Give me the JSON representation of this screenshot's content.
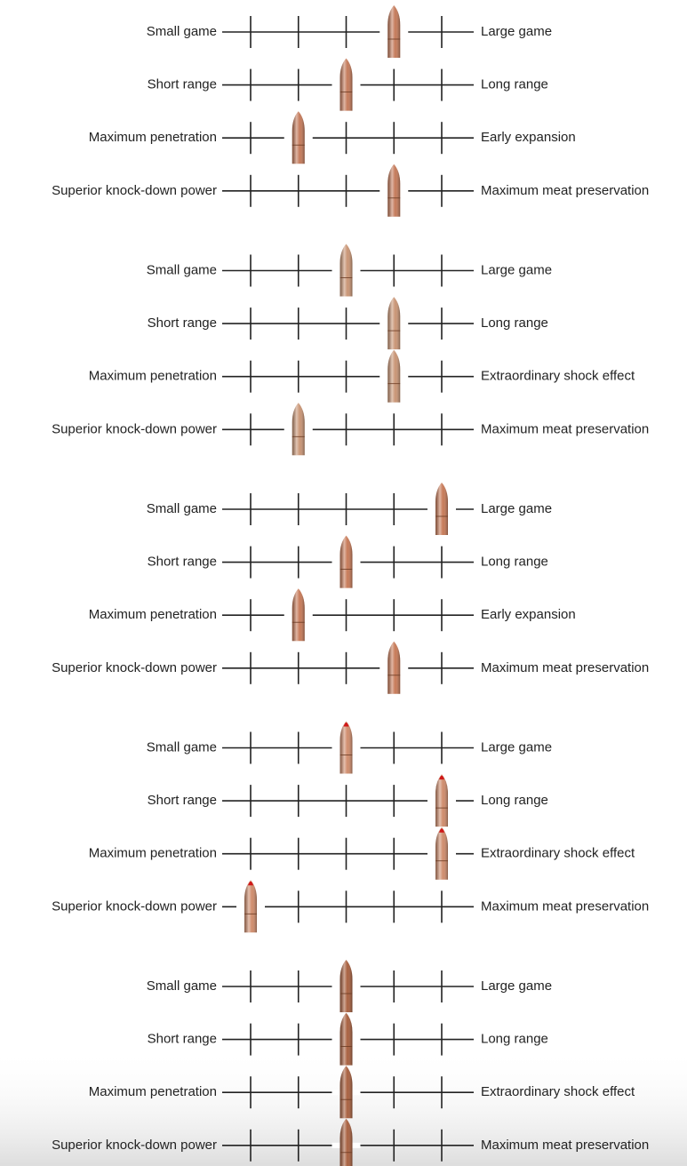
{
  "ticks": [
    1,
    2,
    3,
    4,
    5
  ],
  "groups": [
    {
      "color": "#c47a5a",
      "rows": [
        {
          "left": "Small game",
          "right": "Large game",
          "position": 4
        },
        {
          "left": "Short range",
          "right": "Long range",
          "position": 3
        },
        {
          "left": "Maximum penetration",
          "right": "Early expansion",
          "position": 2
        },
        {
          "left": "Superior knock-down power",
          "right": "Maximum meat preservation",
          "position": 4
        }
      ]
    },
    {
      "color": "#c99575",
      "rows": [
        {
          "left": "Small game",
          "right": "Large game",
          "position": 3
        },
        {
          "left": "Short range",
          "right": "Long range",
          "position": 4
        },
        {
          "left": "Maximum penetration",
          "right": "Extraordinary shock effect",
          "position": 4
        },
        {
          "left": "Superior knock-down power",
          "right": "Maximum meat preservation",
          "position": 2
        }
      ]
    },
    {
      "color": "#c77a58",
      "rows": [
        {
          "left": "Small game",
          "right": "Large game",
          "position": 5
        },
        {
          "left": "Short range",
          "right": "Long range",
          "position": 3
        },
        {
          "left": "Maximum penetration",
          "right": "Early expansion",
          "position": 2
        },
        {
          "left": "Superior knock-down power",
          "right": "Maximum meat preservation",
          "position": 4
        }
      ]
    },
    {
      "color": "#cf8c6c",
      "tip_color": "#d01818",
      "rows": [
        {
          "left": "Small game",
          "right": "Large game",
          "position": 3
        },
        {
          "left": "Short range",
          "right": "Long range",
          "position": 5
        },
        {
          "left": "Maximum penetration",
          "right": "Extraordinary shock effect",
          "position": 5
        },
        {
          "left": "Superior knock-down power",
          "right": "Maximum meat preservation",
          "position": 1
        }
      ]
    },
    {
      "color": "#a8603f",
      "rows": [
        {
          "left": "Small game",
          "right": "Large game",
          "position": 3
        },
        {
          "left": "Short range",
          "right": "Long range",
          "position": 3
        },
        {
          "left": "Maximum penetration",
          "right": "Extraordinary shock effect",
          "position": 3
        },
        {
          "left": "Superior knock-down power",
          "right": "Maximum meat preservation",
          "position": 3
        }
      ]
    }
  ]
}
